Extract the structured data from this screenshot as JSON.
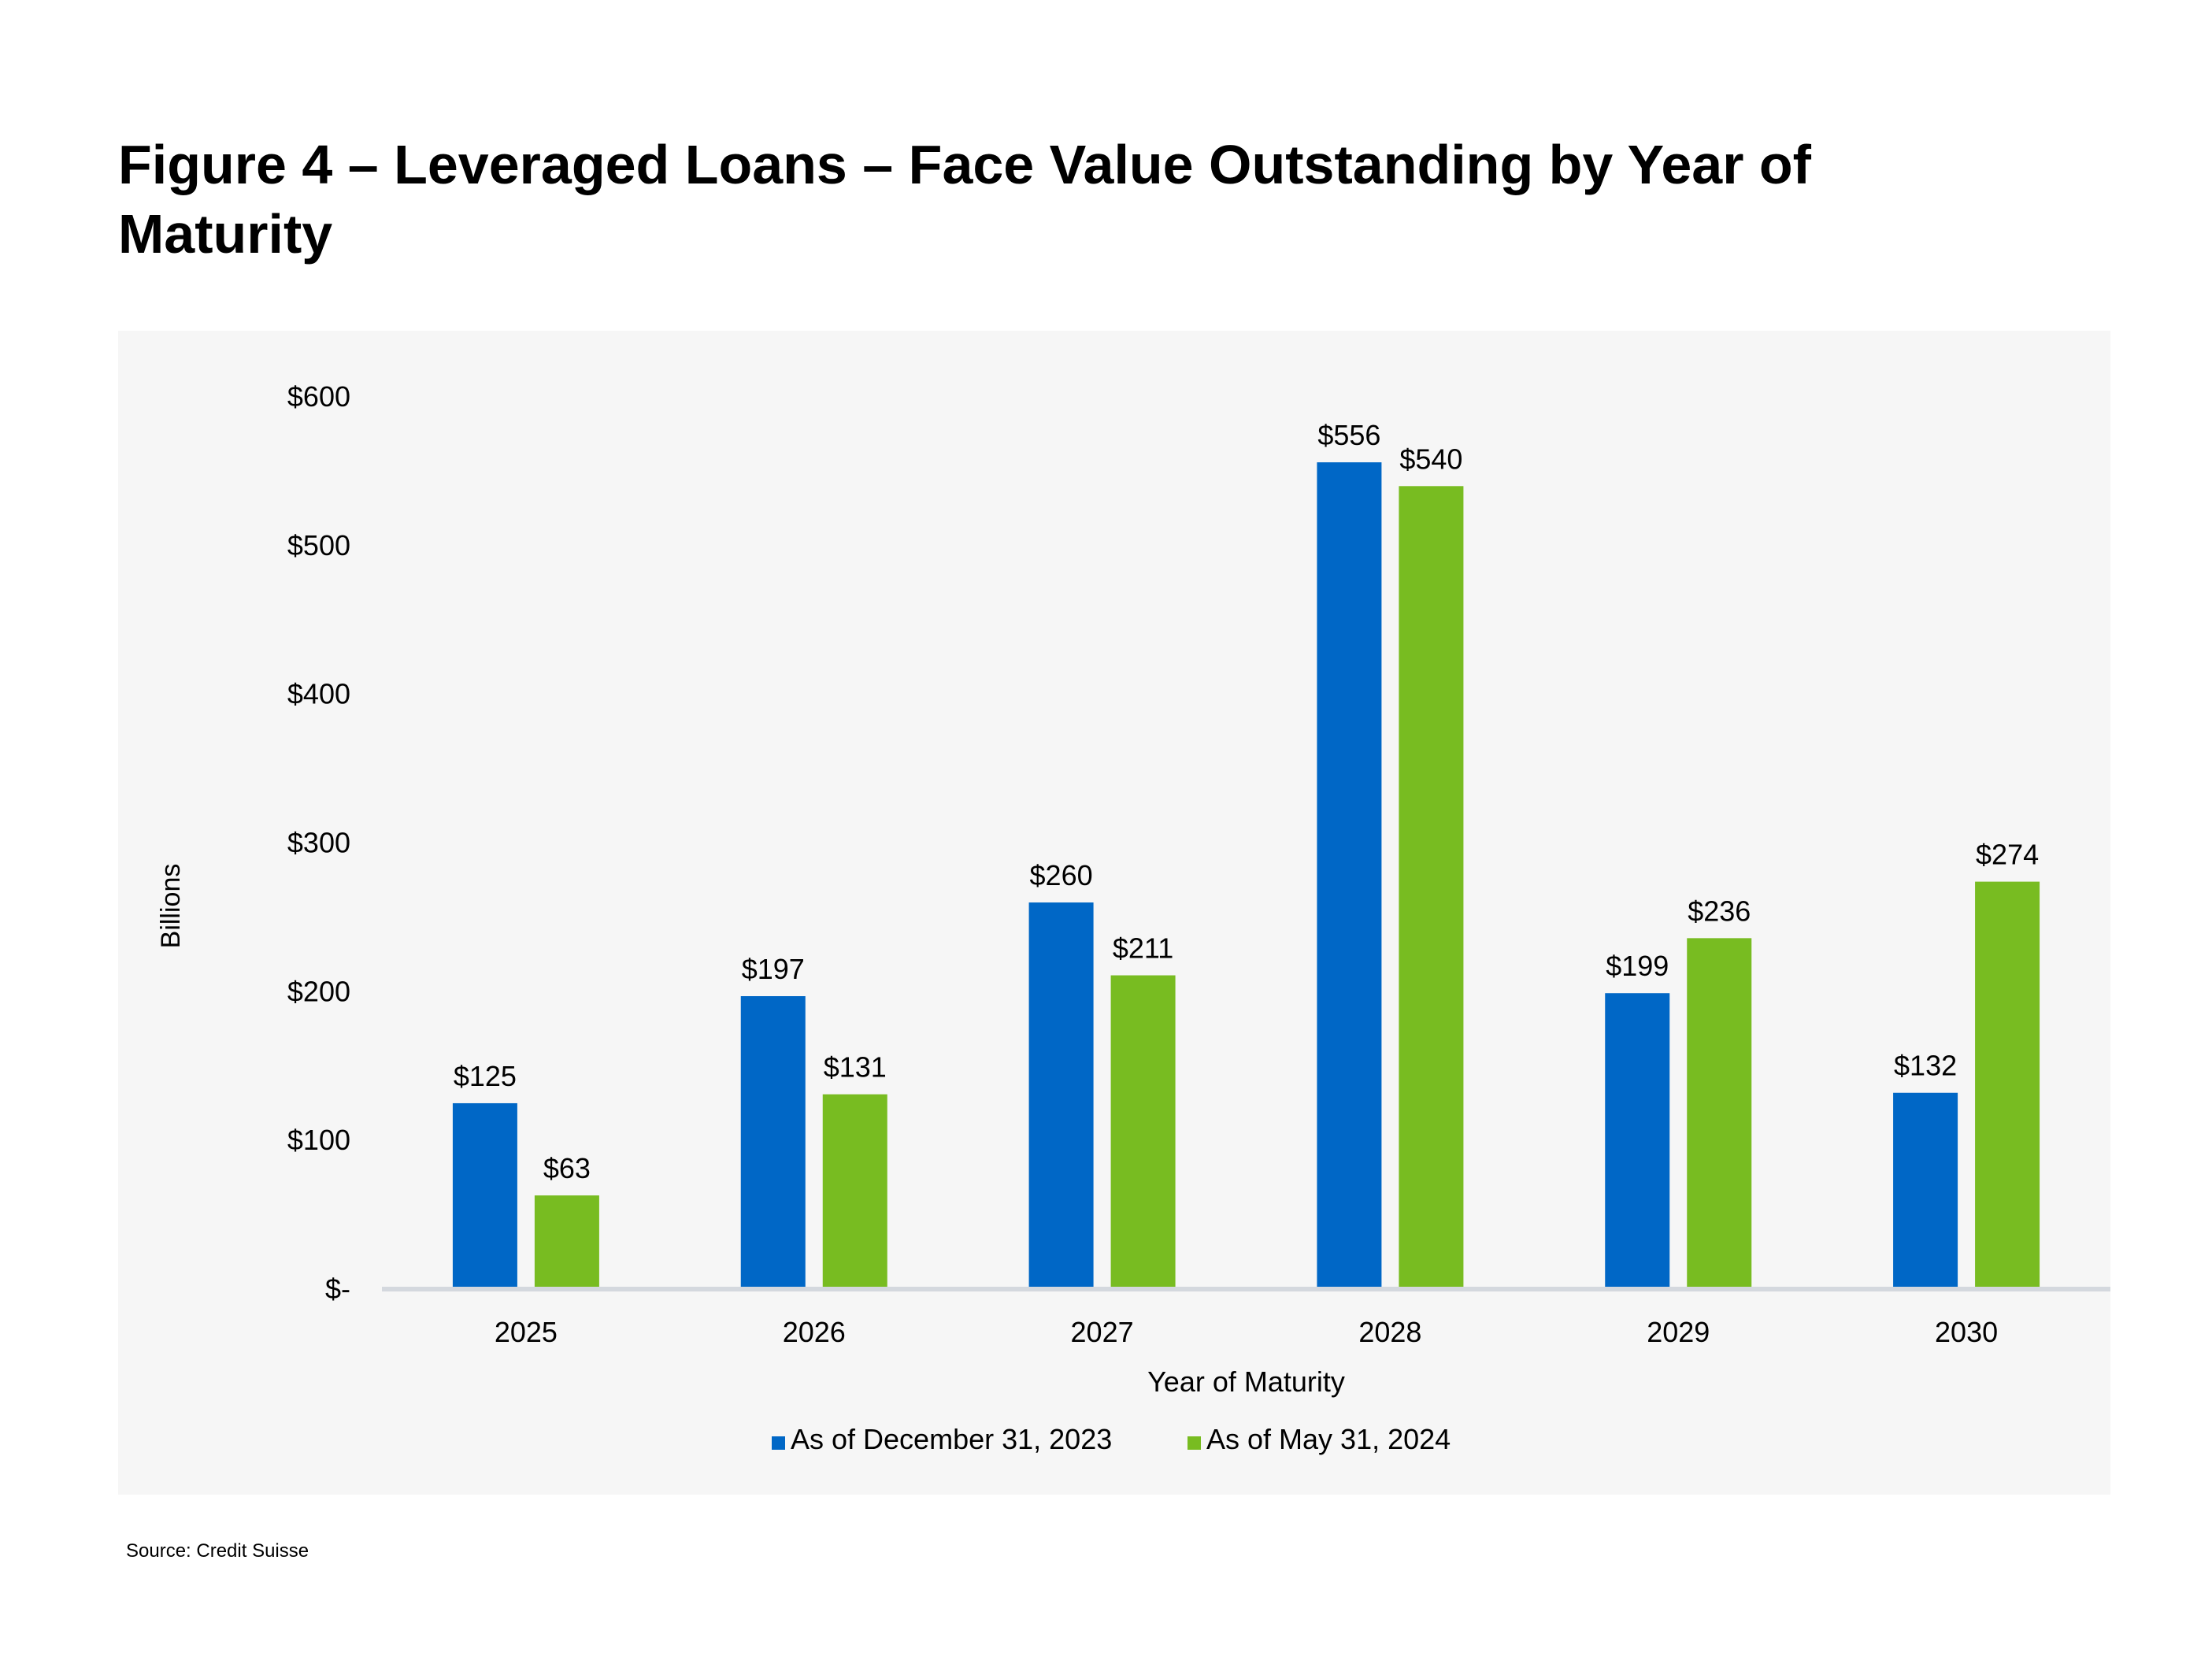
{
  "figure": {
    "title": "Figure 4 – Leveraged Loans – Face Value Outstanding by Year of Maturity",
    "source": "Source: Credit Suisse"
  },
  "colors": {
    "series_1": "#0067c6",
    "series_2": "#78bc21",
    "panel_background": "#f6f6f6",
    "axis_line": "#d4d8de"
  },
  "chart_data": {
    "type": "bar",
    "title": "Figure 4 – Leveraged Loans – Face Value Outstanding by Year of Maturity",
    "xlabel": "Year of Maturity",
    "ylabel": "Billions",
    "categories": [
      "2025",
      "2026",
      "2027",
      "2028",
      "2029",
      "2030"
    ],
    "series": [
      {
        "name": "As of December 31, 2023",
        "values": [
          125,
          197,
          260,
          556,
          199,
          132
        ],
        "labels": [
          "$125",
          "$197",
          "$260",
          "$556",
          "$199",
          "$132"
        ]
      },
      {
        "name": "As of May 31, 2024",
        "values": [
          63,
          131,
          211,
          540,
          236,
          274
        ],
        "labels": [
          "$63",
          "$131",
          "$211",
          "$540",
          "$236",
          "$274"
        ]
      }
    ],
    "ylim": [
      0,
      600
    ],
    "yticks": [
      0,
      100,
      200,
      300,
      400,
      500,
      600
    ],
    "ytick_labels": [
      "$-",
      "$100",
      "$200",
      "$300",
      "$400",
      "$500",
      "$600"
    ],
    "grid": false,
    "legend_position": "bottom-center"
  }
}
